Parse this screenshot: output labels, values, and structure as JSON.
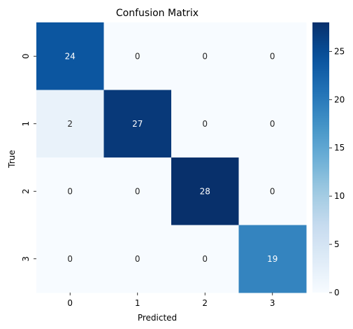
{
  "chart_data": {
    "type": "heatmap",
    "title": "Confusion Matrix",
    "xlabel": "Predicted",
    "ylabel": "True",
    "x_categories": [
      "0",
      "1",
      "2",
      "3"
    ],
    "y_categories": [
      "0",
      "1",
      "2",
      "3"
    ],
    "values": [
      [
        24,
        0,
        0,
        0
      ],
      [
        2,
        27,
        0,
        0
      ],
      [
        0,
        0,
        28,
        0
      ],
      [
        0,
        0,
        0,
        19
      ]
    ],
    "colorbar": {
      "range": [
        0,
        28
      ],
      "ticks": [
        "0",
        "5",
        "10",
        "15",
        "20",
        "25"
      ]
    },
    "colormap": "Blues",
    "colors": {
      "low": "#f7fbff",
      "high": "#08306b",
      "annot_dark": "#262626",
      "annot_light": "#ffffff"
    }
  }
}
